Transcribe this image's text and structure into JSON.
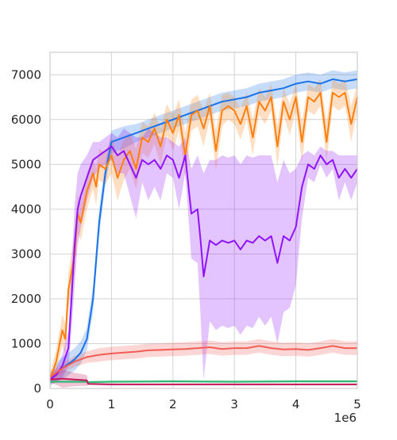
{
  "chart_data": {
    "type": "line",
    "title": "",
    "xlabel": "",
    "ylabel": "",
    "x_scale_label": "1e6",
    "xlim": [
      0,
      5
    ],
    "ylim": [
      0,
      7500
    ],
    "x_ticks": [
      0,
      1,
      2,
      3,
      4,
      5
    ],
    "x_tick_labels": [
      "0",
      "1",
      "2",
      "3",
      "4",
      "5"
    ],
    "y_ticks": [
      0,
      1000,
      2000,
      3000,
      4000,
      5000,
      6000,
      7000
    ],
    "y_tick_labels": [
      "0",
      "1000",
      "2000",
      "3000",
      "4000",
      "5000",
      "6000",
      "7000"
    ],
    "grid": true,
    "legend": "none",
    "background": "#ffffff",
    "grid_color": "#d3d3d3",
    "series": [
      {
        "color": "#1a73e8",
        "x": [
          0,
          0.1,
          0.2,
          0.3,
          0.4,
          0.5,
          0.6,
          0.7,
          0.8,
          0.9,
          1.0,
          1.2,
          1.4,
          1.6,
          1.8,
          2.0,
          2.2,
          2.4,
          2.6,
          2.8,
          3.0,
          3.2,
          3.4,
          3.6,
          3.8,
          4.0,
          4.2,
          4.4,
          4.6,
          4.8,
          5.0
        ],
        "values": [
          200,
          350,
          450,
          550,
          650,
          800,
          1100,
          2000,
          3700,
          4800,
          5500,
          5600,
          5700,
          5800,
          5900,
          6000,
          6100,
          6200,
          6300,
          6400,
          6450,
          6500,
          6600,
          6650,
          6700,
          6800,
          6850,
          6800,
          6900,
          6850,
          6900
        ],
        "band": [
          150,
          200,
          250,
          250,
          250,
          250,
          250,
          300,
          300,
          250,
          250,
          250,
          200,
          200,
          200,
          200,
          200,
          200,
          200,
          200,
          200,
          200,
          200,
          200,
          200,
          200,
          200,
          200,
          200,
          200,
          200
        ]
      },
      {
        "color": "#ff7f0e",
        "x": [
          0,
          0.1,
          0.2,
          0.25,
          0.3,
          0.4,
          0.45,
          0.5,
          0.6,
          0.7,
          0.75,
          0.8,
          0.9,
          1.0,
          1.1,
          1.2,
          1.3,
          1.4,
          1.5,
          1.6,
          1.7,
          1.8,
          1.9,
          2.0,
          2.1,
          2.2,
          2.3,
          2.4,
          2.5,
          2.6,
          2.7,
          2.8,
          2.9,
          3.0,
          3.1,
          3.2,
          3.3,
          3.4,
          3.5,
          3.6,
          3.7,
          3.8,
          3.9,
          4.0,
          4.1,
          4.2,
          4.3,
          4.4,
          4.5,
          4.6,
          4.7,
          4.8,
          4.9,
          5.0
        ],
        "values": [
          200,
          600,
          1300,
          1100,
          2200,
          3000,
          3900,
          3700,
          4400,
          4800,
          4500,
          5000,
          4900,
          5200,
          4700,
          5100,
          5300,
          4900,
          5600,
          5500,
          5800,
          5400,
          6000,
          5700,
          6100,
          5200,
          6100,
          6200,
          5800,
          6300,
          5300,
          6200,
          6300,
          6200,
          5900,
          6300,
          5600,
          6400,
          6200,
          6500,
          5400,
          6400,
          6000,
          6500,
          5500,
          6500,
          6400,
          6600,
          5500,
          6600,
          6500,
          6600,
          5900,
          6500
        ],
        "band": [
          150,
          250,
          350,
          350,
          400,
          450,
          450,
          400,
          400,
          350,
          400,
          350,
          350,
          400,
          500,
          450,
          400,
          450,
          350,
          350,
          350,
          400,
          350,
          400,
          350,
          500,
          350,
          350,
          400,
          300,
          450,
          350,
          300,
          300,
          350,
          300,
          400,
          300,
          300,
          300,
          450,
          300,
          350,
          300,
          450,
          300,
          300,
          300,
          450,
          300,
          300,
          300,
          400,
          300
        ]
      },
      {
        "color": "#9013fe",
        "x": [
          0,
          0.1,
          0.2,
          0.3,
          0.35,
          0.4,
          0.45,
          0.5,
          0.6,
          0.7,
          0.8,
          0.9,
          1.0,
          1.1,
          1.2,
          1.3,
          1.4,
          1.5,
          1.6,
          1.7,
          1.8,
          1.9,
          2.0,
          2.1,
          2.2,
          2.3,
          2.4,
          2.45,
          2.5,
          2.6,
          2.7,
          2.8,
          2.9,
          3.0,
          3.1,
          3.2,
          3.3,
          3.4,
          3.5,
          3.6,
          3.7,
          3.8,
          3.9,
          4.0,
          4.1,
          4.2,
          4.3,
          4.4,
          4.5,
          4.6,
          4.7,
          4.8,
          4.9,
          5.0
        ],
        "values": [
          200,
          300,
          500,
          900,
          2000,
          3200,
          4000,
          4300,
          4700,
          5100,
          5200,
          5300,
          5400,
          5200,
          5300,
          5000,
          4700,
          5100,
          5000,
          5100,
          4900,
          5200,
          5100,
          4700,
          5200,
          3900,
          4000,
          3300,
          2500,
          3300,
          3200,
          3300,
          3250,
          3300,
          3100,
          3300,
          3250,
          3400,
          3300,
          3400,
          2800,
          3400,
          3300,
          3600,
          4500,
          5000,
          4900,
          5200,
          5000,
          5100,
          4700,
          4900,
          4700,
          4900
        ],
        "band": [
          100,
          150,
          250,
          400,
          700,
          900,
          800,
          700,
          500,
          400,
          300,
          300,
          300,
          400,
          500,
          700,
          900,
          500,
          800,
          600,
          700,
          400,
          400,
          700,
          400,
          1000,
          1200,
          1700,
          2300,
          1800,
          1900,
          1900,
          1900,
          1900,
          1900,
          1900,
          1900,
          1800,
          1900,
          1800,
          1800,
          1700,
          1500,
          1300,
          700,
          300,
          300,
          200,
          300,
          200,
          500,
          300,
          500,
          300
        ]
      },
      {
        "color": "#f25c54",
        "x": [
          0,
          0.2,
          0.4,
          0.6,
          0.8,
          1.0,
          1.2,
          1.4,
          1.6,
          1.8,
          2.0,
          2.2,
          2.4,
          2.6,
          2.8,
          3.0,
          3.2,
          3.4,
          3.6,
          3.8,
          4.0,
          4.2,
          4.4,
          4.6,
          4.8,
          5.0
        ],
        "values": [
          250,
          450,
          600,
          700,
          750,
          780,
          800,
          820,
          850,
          860,
          870,
          880,
          900,
          920,
          880,
          900,
          900,
          950,
          900,
          870,
          880,
          860,
          900,
          950,
          900,
          900
        ],
        "band": [
          100,
          100,
          120,
          130,
          150,
          150,
          150,
          150,
          150,
          150,
          150,
          150,
          150,
          150,
          150,
          150,
          150,
          150,
          150,
          150,
          150,
          150,
          150,
          150,
          150,
          150
        ]
      },
      {
        "color": "#2eb872",
        "x": [
          0,
          0.6,
          0.62,
          1.0,
          2.0,
          3.0,
          4.0,
          5.0
        ],
        "values": [
          150,
          150,
          140,
          150,
          160,
          150,
          160,
          160
        ],
        "band": [
          30,
          30,
          30,
          30,
          30,
          30,
          30,
          30
        ]
      },
      {
        "color": "#c2185b",
        "x": [
          0,
          0.2,
          0.4,
          0.6,
          0.62,
          1.0,
          2.0,
          3.0,
          4.0,
          5.0
        ],
        "values": [
          200,
          220,
          200,
          180,
          100,
          90,
          90,
          90,
          90,
          90
        ],
        "band": [
          60,
          200,
          150,
          120,
          20,
          20,
          20,
          20,
          20,
          20
        ]
      }
    ]
  }
}
